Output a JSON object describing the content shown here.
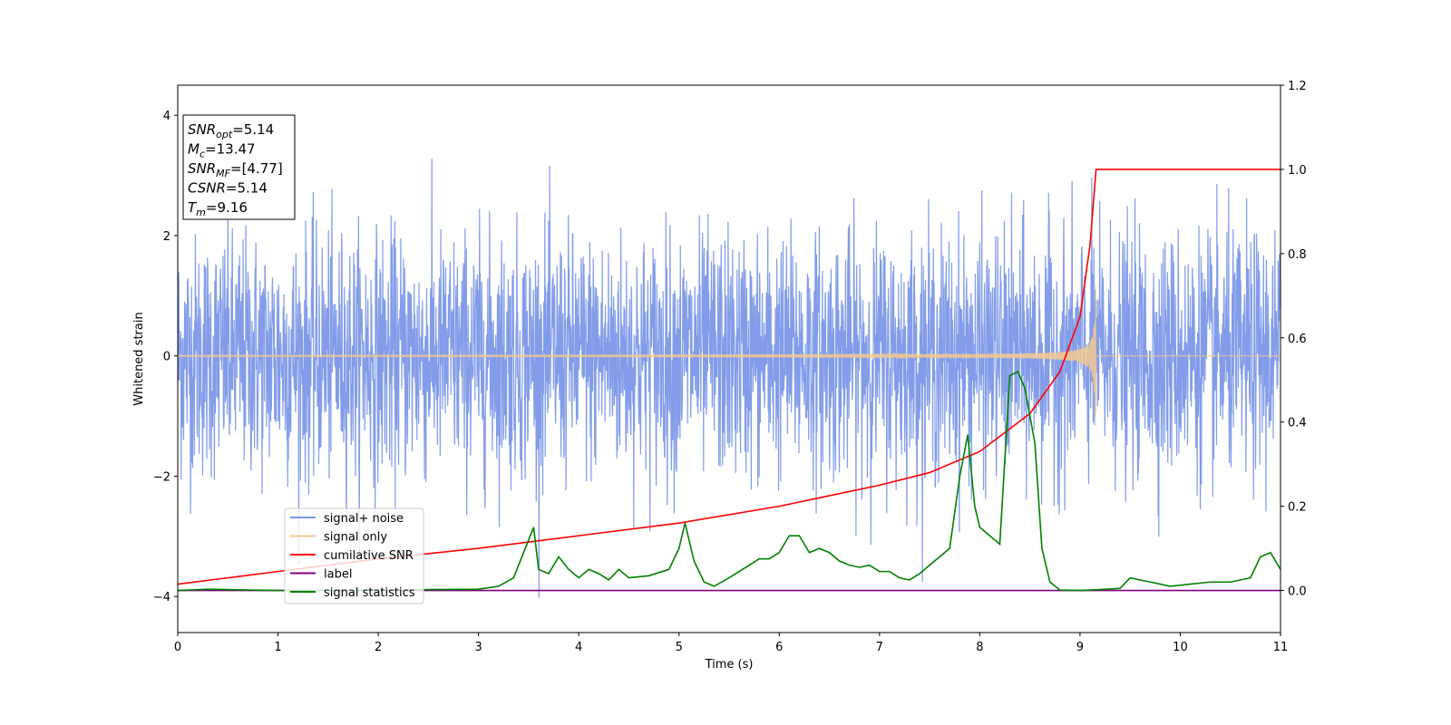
{
  "chart_data": {
    "type": "line",
    "xlabel": "Time (s)",
    "ylabel": "Whitened strain",
    "xlim": [
      0,
      11
    ],
    "ylim": [
      -4.6,
      4.5
    ],
    "y2lim": [
      -0.1,
      1.2
    ],
    "xticks": [
      "0",
      "1",
      "2",
      "3",
      "4",
      "5",
      "6",
      "7",
      "8",
      "9",
      "10",
      "11"
    ],
    "yticks": [
      "−4",
      "−2",
      "0",
      "2",
      "4"
    ],
    "y2ticks": [
      "0.0",
      "0.2",
      "0.4",
      "0.6",
      "0.8",
      "1.0",
      "1.2"
    ],
    "legend_position": "lower-left",
    "grid": false,
    "annotation": [
      {
        "main": "SNR",
        "sub": "opt",
        "rest": "=5.14"
      },
      {
        "main": "M",
        "sub": "c",
        "rest": "=13.47"
      },
      {
        "main": "SNR",
        "sub": "MF",
        "rest": "=[4.77]"
      },
      {
        "main": "CSNR",
        "sub": "",
        "rest": "=5.14"
      },
      {
        "main": "T",
        "sub": "m",
        "rest": "=9.16"
      }
    ],
    "series": [
      {
        "name": "signal+ noise",
        "axis": "left",
        "color": "#7b97e8",
        "style": "dense-noise",
        "noise_std": 1.0,
        "noise_range": [
          -4.1,
          4.1
        ],
        "points_per_second": 290
      },
      {
        "name": "signal only",
        "axis": "left",
        "color": "#f5c98f",
        "style": "chirp",
        "merger_time": 9.16,
        "peak_amplitude": 1.2
      },
      {
        "name": "cumilative SNR",
        "axis": "right",
        "color": "#ff0000",
        "x": [
          0,
          1,
          2,
          3,
          4,
          5,
          6,
          7,
          7.5,
          8,
          8.5,
          8.8,
          9.0,
          9.1,
          9.16,
          9.17,
          11
        ],
        "values": [
          0.015,
          0.045,
          0.075,
          0.1,
          0.13,
          0.16,
          0.2,
          0.25,
          0.28,
          0.33,
          0.42,
          0.52,
          0.65,
          0.82,
          1.0,
          1.0,
          1.0
        ]
      },
      {
        "name": "label",
        "axis": "right",
        "color": "#800080",
        "x": [
          0,
          11
        ],
        "values": [
          0.0,
          0.0
        ]
      },
      {
        "name": "signal statistics",
        "axis": "right",
        "color": "#008000",
        "x": [
          0,
          0.3,
          0.5,
          1.0,
          1.5,
          2.0,
          2.5,
          3.0,
          3.2,
          3.35,
          3.45,
          3.55,
          3.6,
          3.7,
          3.8,
          3.9,
          4.0,
          4.1,
          4.2,
          4.3,
          4.4,
          4.5,
          4.7,
          4.9,
          5.0,
          5.06,
          5.15,
          5.25,
          5.35,
          5.5,
          5.7,
          5.8,
          5.9,
          6.0,
          6.1,
          6.2,
          6.3,
          6.4,
          6.5,
          6.6,
          6.7,
          6.8,
          6.9,
          7.0,
          7.1,
          7.2,
          7.3,
          7.4,
          7.5,
          7.6,
          7.7,
          7.8,
          7.88,
          7.95,
          8.0,
          8.1,
          8.2,
          8.3,
          8.38,
          8.45,
          8.55,
          8.62,
          8.7,
          8.8,
          9.0,
          9.2,
          9.4,
          9.5,
          9.7,
          9.9,
          10.1,
          10.3,
          10.5,
          10.7,
          10.8,
          10.9,
          11.0
        ],
        "values": [
          0.0,
          0.003,
          0.002,
          0.0,
          0.0,
          0.0,
          0.002,
          0.003,
          0.01,
          0.03,
          0.09,
          0.15,
          0.05,
          0.04,
          0.08,
          0.05,
          0.03,
          0.05,
          0.04,
          0.025,
          0.05,
          0.03,
          0.035,
          0.05,
          0.1,
          0.16,
          0.07,
          0.02,
          0.01,
          0.03,
          0.06,
          0.075,
          0.075,
          0.09,
          0.13,
          0.13,
          0.09,
          0.1,
          0.09,
          0.07,
          0.06,
          0.055,
          0.06,
          0.045,
          0.045,
          0.03,
          0.025,
          0.04,
          0.06,
          0.08,
          0.1,
          0.27,
          0.37,
          0.2,
          0.15,
          0.13,
          0.11,
          0.51,
          0.52,
          0.48,
          0.35,
          0.1,
          0.02,
          0.001,
          0.0,
          0.002,
          0.005,
          0.03,
          0.02,
          0.01,
          0.015,
          0.02,
          0.02,
          0.03,
          0.08,
          0.09,
          0.05
        ]
      }
    ]
  }
}
